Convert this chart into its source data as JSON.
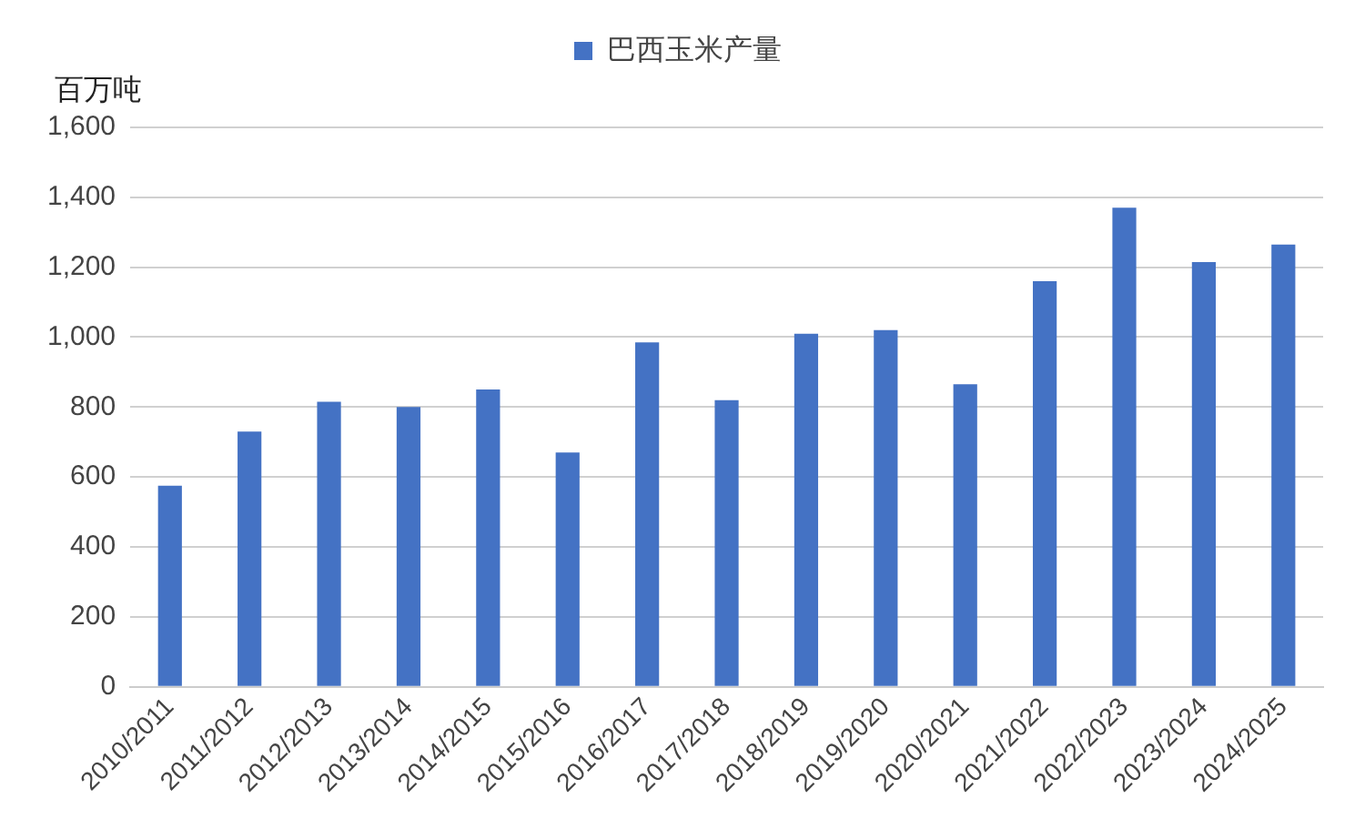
{
  "chart_data": {
    "type": "bar",
    "ylabel": "百万吨",
    "categories": [
      "2010/2011",
      "2011/2012",
      "2012/2013",
      "2013/2014",
      "2014/2015",
      "2015/2016",
      "2016/2017",
      "2017/2018",
      "2018/2019",
      "2019/2020",
      "2020/2021",
      "2021/2022",
      "2022/2023",
      "2023/2024",
      "2024/2025"
    ],
    "series": [
      {
        "name": "巴西玉米产量",
        "color": "#4472c4",
        "values": [
          575,
          730,
          815,
          800,
          850,
          670,
          985,
          820,
          1010,
          1020,
          865,
          1160,
          1370,
          1215,
          1265
        ]
      }
    ],
    "ylim": [
      0,
      1600
    ],
    "yticks": [
      0,
      200,
      400,
      600,
      800,
      {
        "value": 1000,
        "label": "1,000"
      },
      {
        "value": 1200,
        "label": "1,200"
      },
      {
        "value": 1400,
        "label": "1,400"
      },
      {
        "value": 1600,
        "label": "1,600"
      }
    ],
    "grid": "y",
    "legend": "top"
  }
}
